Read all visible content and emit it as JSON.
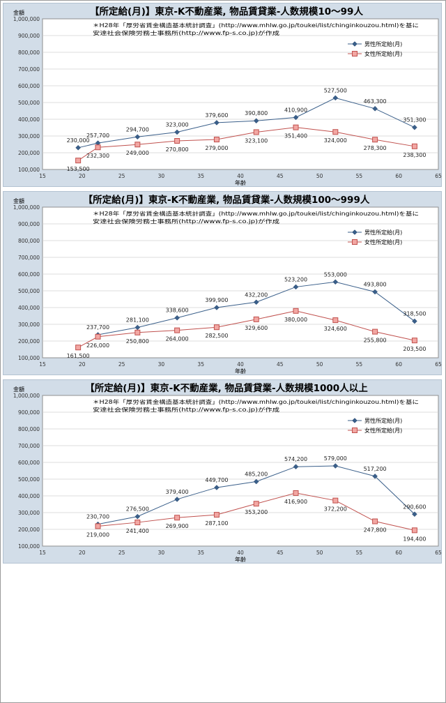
{
  "chart_data": [
    {
      "type": "line",
      "title": "【所定給(月)】東京-K不動産業, 物品賃貸業-人数規模10～99人",
      "xlabel": "年齢",
      "ylabel": "金額",
      "xlim": [
        15,
        65
      ],
      "ylim": [
        100000,
        1000000
      ],
      "xticks": [
        "15",
        "20",
        "25",
        "30",
        "35",
        "40",
        "45",
        "50",
        "55",
        "60",
        "65"
      ],
      "yticks": [
        "100,000",
        "200,000",
        "300,000",
        "400,000",
        "500,000",
        "600,000",
        "700,000",
        "800,000",
        "900,000",
        "1,000,000"
      ],
      "annotation_lines": [
        "＊H28年「厚労省賃金構造基本統計調査」(http://www.mhlw.go.jp/toukei/list/chinginkouzou.html)を基に",
        "安達社会保険労務士事務所(http://www.fp-s.co.jp)が作成"
      ],
      "grid": "horizontal",
      "legend_position": "top-right",
      "series": [
        {
          "name": "男性所定給(月)",
          "color": "#3a5f8a",
          "marker": "diamond",
          "x": [
            19.5,
            22,
            27,
            32,
            37,
            42,
            47,
            52,
            57,
            62
          ],
          "values": [
            230000,
            257700,
            294700,
            323000,
            379600,
            390800,
            410900,
            527500,
            463300,
            351300
          ],
          "labels": [
            "230,000",
            "257,700",
            "294,700",
            "323,000",
            "379,600",
            "390,800",
            "410,900",
            "527,500",
            "463,300",
            "351,300"
          ]
        },
        {
          "name": "女性所定給(月)",
          "color": "#c0504d",
          "marker": "square",
          "x": [
            19.5,
            22,
            27,
            32,
            37,
            42,
            47,
            52,
            57,
            62
          ],
          "values": [
            153500,
            232300,
            249000,
            270800,
            279000,
            323100,
            351400,
            324000,
            278300,
            238300
          ],
          "labels": [
            "153,500",
            "232,300",
            "249,000",
            "270,800",
            "279,000",
            "323,100",
            "351,400",
            "324,000",
            "278,300",
            "238,300"
          ]
        }
      ]
    },
    {
      "type": "line",
      "title": "【所定給(月)】東京-K不動産業, 物品賃貸業-人数規模100～999人",
      "xlabel": "年齢",
      "ylabel": "金額",
      "xlim": [
        15,
        65
      ],
      "ylim": [
        100000,
        1000000
      ],
      "xticks": [
        "15",
        "20",
        "25",
        "30",
        "35",
        "40",
        "45",
        "50",
        "55",
        "60",
        "65"
      ],
      "yticks": [
        "100,000",
        "200,000",
        "300,000",
        "400,000",
        "500,000",
        "600,000",
        "700,000",
        "800,000",
        "900,000",
        "1,000,000"
      ],
      "annotation_lines": [
        "＊H28年「厚労省賃金構造基本統計調査」(http://www.mhlw.go.jp/toukei/list/chinginkouzou.html)を基に",
        "安達社会保険労務士事務所(http://www.fp-s.co.jp)が作成"
      ],
      "grid": "horizontal",
      "legend_position": "top-right",
      "series": [
        {
          "name": "男性所定給(月)",
          "color": "#3a5f8a",
          "marker": "diamond",
          "x": [
            22,
            27,
            32,
            37,
            42,
            47,
            52,
            57,
            62
          ],
          "values": [
            237700,
            281100,
            338600,
            399900,
            432200,
            523200,
            553000,
            493800,
            318500
          ],
          "labels": [
            "237,700",
            "281,100",
            "338,600",
            "399,900",
            "432,200",
            "523,200",
            "553,000",
            "493,800",
            "318,500"
          ]
        },
        {
          "name": "女性所定給(月)",
          "color": "#c0504d",
          "marker": "square",
          "x": [
            19.5,
            22,
            27,
            32,
            37,
            42,
            47,
            52,
            57,
            62
          ],
          "values": [
            161500,
            226000,
            250800,
            264000,
            282500,
            329600,
            380000,
            324600,
            255800,
            203500
          ],
          "labels": [
            "161,500",
            "226,000",
            "250,800",
            "264,000",
            "282,500",
            "329,600",
            "380,000",
            "324,600",
            "255,800",
            "203,500"
          ]
        }
      ]
    },
    {
      "type": "line",
      "title": "【所定給(月)】東京-K不動産業, 物品賃貸業-人数規模1000人以上",
      "xlabel": "年齢",
      "ylabel": "金額",
      "xlim": [
        15,
        65
      ],
      "ylim": [
        100000,
        1000000
      ],
      "xticks": [
        "15",
        "20",
        "25",
        "30",
        "35",
        "40",
        "45",
        "50",
        "55",
        "60",
        "65"
      ],
      "yticks": [
        "100,000",
        "200,000",
        "300,000",
        "400,000",
        "500,000",
        "600,000",
        "700,000",
        "800,000",
        "900,000",
        "1,000,000"
      ],
      "annotation_lines": [
        "＊H28年「厚労省賃金構造基本統計調査」(http://www.mhlw.go.jp/toukei/list/chinginkouzou.html)を基に",
        "安達社会保険労務士事務所(http://www.fp-s.co.jp)が作成"
      ],
      "grid": "horizontal",
      "legend_position": "top-right",
      "series": [
        {
          "name": "男性所定給(月)",
          "color": "#3a5f8a",
          "marker": "diamond",
          "x": [
            22,
            27,
            32,
            37,
            42,
            47,
            52,
            57,
            62
          ],
          "values": [
            230700,
            276500,
            379400,
            449700,
            485200,
            574200,
            579000,
            517200,
            290600
          ],
          "labels": [
            "230,700",
            "276,500",
            "379,400",
            "449,700",
            "485,200",
            "574,200",
            "579,000",
            "517,200",
            "290,600"
          ]
        },
        {
          "name": "女性所定給(月)",
          "color": "#c0504d",
          "marker": "square",
          "x": [
            22,
            27,
            32,
            37,
            42,
            47,
            52,
            57,
            62
          ],
          "values": [
            219000,
            241400,
            269900,
            287100,
            353200,
            416900,
            372200,
            247800,
            194400
          ],
          "labels": [
            "219,000",
            "241,400",
            "269,900",
            "287,100",
            "353,200",
            "416,900",
            "372,200",
            "247,800",
            "194,400"
          ]
        }
      ]
    }
  ]
}
